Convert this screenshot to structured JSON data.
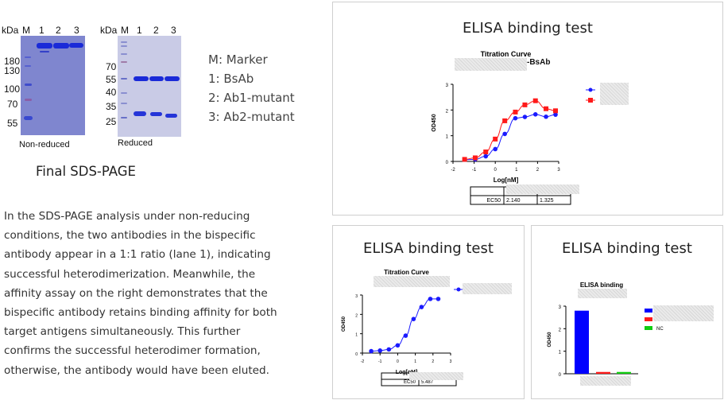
{
  "gel": {
    "non_reduced": {
      "header": [
        "kDa",
        "M",
        "1",
        "2",
        "3"
      ],
      "markers": [
        "180",
        "130",
        "100",
        "70",
        "55"
      ],
      "caption": "Non-reduced"
    },
    "reduced": {
      "header": [
        "kDa",
        "M",
        "1",
        "2",
        "3"
      ],
      "markers": [
        "70",
        "55",
        "40",
        "35",
        "25"
      ],
      "caption": "Reduced"
    },
    "legend": [
      "M: Marker",
      "1:  BsAb",
      "2:  Ab1-mutant",
      "3:  Ab2-mutant"
    ],
    "title": "Final SDS-PAGE"
  },
  "description": "In the SDS-PAGE analysis under non-reducing conditions, the two antibodies in the bispecific antibody appear in a 1:1 ratio (lane 1), indicating successful heterodimerization. Meanwhile, the affinity assay on the right demonstrates that the bispecific antibody retains binding affinity for both target antigens simultaneously. This further confirms the successful heterodimer formation, otherwise, the antibody would have been eluted.",
  "panels": [
    {
      "title": "ELISA binding test",
      "subtitle_suffix": "-BsAb"
    },
    {
      "title": "ELISA binding test"
    },
    {
      "title": "ELISA binding test"
    }
  ],
  "chart_data": [
    {
      "type": "line",
      "title": "Titration Curve",
      "xlabel": "Log[nM]",
      "ylabel": "OD450",
      "xlim": [
        -2,
        3
      ],
      "ylim": [
        0,
        3
      ],
      "xticks": [
        "-2",
        "-1",
        "0",
        "1",
        "2",
        "3"
      ],
      "yticks": [
        "0",
        "1",
        "2",
        "3"
      ],
      "series": [
        {
          "color": "#1a1aff",
          "marker": "circle",
          "x": [
            -1.45,
            -0.95,
            -0.45,
            0,
            0.45,
            0.95,
            1.4,
            1.9,
            2.4,
            2.85
          ],
          "y": [
            0.07,
            0.08,
            0.2,
            0.48,
            1.07,
            1.68,
            1.73,
            1.83,
            1.74,
            1.82
          ]
        },
        {
          "color": "#ff1a1a",
          "marker": "square",
          "x": [
            -1.45,
            -0.95,
            -0.45,
            0,
            0.45,
            0.95,
            1.4,
            1.9,
            2.4,
            2.85
          ],
          "y": [
            0.08,
            0.14,
            0.37,
            0.87,
            1.58,
            1.92,
            2.2,
            2.36,
            2.05,
            1.97
          ]
        }
      ],
      "table": {
        "row_label": "EC50",
        "values": [
          "2.140",
          "1.325"
        ]
      }
    },
    {
      "type": "line",
      "title": "Titration Curve",
      "xlabel": "Log[nM]",
      "ylabel": "OD450",
      "xlim": [
        -2,
        3
      ],
      "ylim": [
        0,
        3
      ],
      "xticks": [
        "-2",
        "-1",
        "0",
        "1",
        "2",
        "3"
      ],
      "yticks": [
        "0",
        "1",
        "2",
        "3"
      ],
      "series": [
        {
          "color": "#1a1aff",
          "marker": "circle",
          "x": [
            -1.5,
            -1,
            -0.5,
            0,
            0.45,
            0.9,
            1.35,
            1.85,
            2.3
          ],
          "y": [
            0.1,
            0.13,
            0.19,
            0.4,
            0.9,
            1.76,
            2.38,
            2.8,
            2.8
          ]
        }
      ],
      "table": {
        "row_label": "EC50",
        "values": [
          "5.487"
        ]
      }
    },
    {
      "type": "bar",
      "title": "ELISA binding",
      "ylabel": "OD450",
      "ylim": [
        0,
        3
      ],
      "yticks": [
        "0",
        "1",
        "2",
        "3"
      ],
      "values": [
        2.8,
        0.08,
        0.08
      ],
      "colors": [
        "#0000ff",
        "#ff1a1a",
        "#11cc11"
      ],
      "legend": [
        "",
        "",
        "NC"
      ]
    }
  ]
}
